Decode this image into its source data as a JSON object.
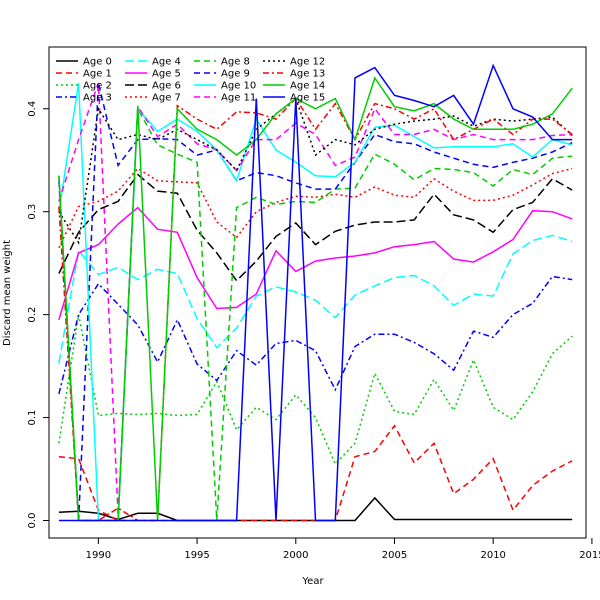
{
  "chart_data": {
    "type": "line",
    "title": "",
    "xlabel": "Year",
    "ylabel": "Discard mean weight",
    "xlim": [
      1987.5,
      2014.7
    ],
    "ylim": [
      -0.017,
      0.46
    ],
    "xticks": [
      1990,
      1995,
      2000,
      2005,
      2010,
      2015
    ],
    "yticks": [
      0.0,
      0.1,
      0.2,
      0.3,
      0.4
    ],
    "ytick_labels": [
      "0.0",
      "0.1",
      "0.2",
      "0.3",
      "0.4"
    ],
    "grid": false,
    "legend_position": "top-left",
    "x": [
      1988,
      1989,
      1990,
      1991,
      1992,
      1993,
      1994,
      1995,
      1996,
      1997,
      1998,
      1999,
      2000,
      2001,
      2002,
      2003,
      2004,
      2005,
      2006,
      2007,
      2008,
      2009,
      2010,
      2011,
      2012,
      2013,
      2014
    ],
    "series": [
      {
        "name": "Age 0",
        "color": "#000000",
        "dash": "solid",
        "values": [
          0.008,
          0.009,
          0.007,
          0.001,
          0.007,
          0.007,
          0.0,
          0.0,
          0.0,
          0.0,
          0.0,
          0.0,
          0.0,
          0.0,
          0.0,
          0.0,
          0.022,
          0.001,
          0.001,
          0.001,
          0.001,
          0.001,
          0.001,
          0.001,
          0.001,
          0.001,
          0.001
        ]
      },
      {
        "name": "Age 1",
        "color": "#ff0000",
        "dash": "dashed",
        "values": [
          0.062,
          0.06,
          0.01,
          0.0,
          0.0,
          0.0,
          0.0,
          0.0,
          0.0,
          0.0,
          0.0,
          0.0,
          0.0,
          0.0,
          0.0,
          0.062,
          0.067,
          0.092,
          0.056,
          0.075,
          0.026,
          0.04,
          0.06,
          0.01,
          0.034,
          0.048,
          0.058
        ]
      },
      {
        "name": "Age 2",
        "color": "#00cd00",
        "dash": "dotted",
        "values": [
          0.075,
          0.2,
          0.102,
          0.104,
          0.103,
          0.104,
          0.102,
          0.103,
          0.135,
          0.088,
          0.11,
          0.098,
          0.122,
          0.1,
          0.055,
          0.075,
          0.143,
          0.106,
          0.103,
          0.137,
          0.107,
          0.156,
          0.11,
          0.098,
          0.125,
          0.162,
          0.179
        ]
      },
      {
        "name": "Age 3",
        "color": "#0000ff",
        "dash": "dashdot",
        "values": [
          0.123,
          0.2,
          0.23,
          0.21,
          0.19,
          0.154,
          0.195,
          0.152,
          0.136,
          0.165,
          0.151,
          0.172,
          0.175,
          0.165,
          0.127,
          0.169,
          0.181,
          0.181,
          0.173,
          0.162,
          0.146,
          0.184,
          0.178,
          0.2,
          0.211,
          0.237,
          0.234
        ]
      },
      {
        "name": "Age 4",
        "color": "#00ffff",
        "dash": "longdash",
        "values": [
          0.153,
          0.262,
          0.239,
          0.246,
          0.234,
          0.244,
          0.24,
          0.196,
          0.168,
          0.187,
          0.218,
          0.227,
          0.222,
          0.214,
          0.197,
          0.219,
          0.228,
          0.236,
          0.238,
          0.228,
          0.209,
          0.22,
          0.218,
          0.259,
          0.272,
          0.277,
          0.271
        ]
      },
      {
        "name": "Age 5",
        "color": "#ff00ff",
        "dash": "solid",
        "values": [
          0.195,
          0.26,
          0.268,
          0.288,
          0.304,
          0.283,
          0.28,
          0.236,
          0.206,
          0.207,
          0.22,
          0.262,
          0.242,
          0.252,
          0.255,
          0.257,
          0.26,
          0.266,
          0.268,
          0.271,
          0.254,
          0.251,
          0.261,
          0.273,
          0.301,
          0.3,
          0.293
        ]
      },
      {
        "name": "Age 6",
        "color": "#000000",
        "dash": "longdash",
        "values": [
          0.24,
          0.28,
          0.302,
          0.31,
          0.336,
          0.32,
          0.318,
          0.282,
          0.26,
          0.233,
          0.252,
          0.276,
          0.289,
          0.268,
          0.281,
          0.287,
          0.29,
          0.29,
          0.292,
          0.317,
          0.297,
          0.292,
          0.28,
          0.302,
          0.309,
          0.332,
          0.321
        ]
      },
      {
        "name": "Age 7",
        "color": "#ff0000",
        "dash": "dotted",
        "values": [
          0.265,
          0.305,
          0.31,
          0.32,
          0.342,
          0.33,
          0.329,
          0.328,
          0.29,
          0.275,
          0.3,
          0.309,
          0.315,
          0.314,
          0.317,
          0.314,
          0.324,
          0.316,
          0.314,
          0.332,
          0.32,
          0.311,
          0.311,
          0.316,
          0.326,
          0.337,
          0.342
        ]
      },
      {
        "name": "Age 8",
        "color": "#00cd00",
        "dash": "dashed",
        "values": [
          0.335,
          0.0,
          0.0,
          0.0,
          0.4,
          0.365,
          0.356,
          0.348,
          0.0,
          0.304,
          0.314,
          0.307,
          0.31,
          0.309,
          0.322,
          0.323,
          0.356,
          0.346,
          0.331,
          0.342,
          0.341,
          0.338,
          0.325,
          0.341,
          0.336,
          0.352,
          0.354
        ]
      },
      {
        "name": "Age 9",
        "color": "#0000ff",
        "dash": "dashed",
        "values": [
          0.33,
          0.0,
          0.425,
          0.345,
          0.37,
          0.371,
          0.37,
          0.355,
          0.36,
          0.33,
          0.338,
          0.335,
          0.328,
          0.322,
          0.322,
          0.348,
          0.375,
          0.368,
          0.366,
          0.358,
          0.352,
          0.346,
          0.343,
          0.348,
          0.352,
          0.358,
          0.367
        ]
      },
      {
        "name": "Age 10",
        "color": "#00ffff",
        "dash": "solid",
        "values": [
          0.3,
          0.425,
          0.0,
          0.0,
          0.4,
          0.378,
          0.39,
          0.378,
          0.36,
          0.33,
          0.39,
          0.36,
          0.348,
          0.335,
          0.334,
          0.348,
          0.382,
          0.384,
          0.373,
          0.362,
          0.363,
          0.363,
          0.363,
          0.366,
          0.353,
          0.37,
          0.365
        ]
      },
      {
        "name": "Age 11",
        "color": "#ff00ff",
        "dash": "dashed",
        "values": [
          0.31,
          0.37,
          0.425,
          0.005,
          0.402,
          0.373,
          0.385,
          0.366,
          0.36,
          0.34,
          0.37,
          0.37,
          0.386,
          0.375,
          0.345,
          0.353,
          0.4,
          0.375,
          0.375,
          0.38,
          0.37,
          0.375,
          0.37,
          0.37,
          0.37,
          0.374,
          0.375
        ]
      },
      {
        "name": "Age 12",
        "color": "#000000",
        "dash": "dotted",
        "values": [
          0.3,
          0.27,
          0.4,
          0.37,
          0.375,
          0.37,
          0.38,
          0.37,
          0.36,
          0.34,
          0.38,
          0.395,
          0.41,
          0.355,
          0.37,
          0.365,
          0.38,
          0.385,
          0.388,
          0.39,
          0.393,
          0.383,
          0.39,
          0.388,
          0.39,
          0.392,
          0.374
        ]
      },
      {
        "name": "Age 13",
        "color": "#ff0000",
        "dash": "dashdot",
        "values": [
          0.305,
          0.0,
          0.0,
          0.012,
          0.0,
          0.0,
          0.403,
          0.39,
          0.38,
          0.397,
          0.396,
          0.39,
          0.41,
          0.38,
          0.405,
          0.37,
          0.405,
          0.4,
          0.39,
          0.4,
          0.37,
          0.38,
          0.39,
          0.375,
          0.39,
          0.39,
          0.375
        ]
      },
      {
        "name": "Age 14",
        "color": "#00cd00",
        "dash": "solid",
        "values": [
          0.335,
          0.0,
          0.0,
          0.0,
          0.403,
          0.0,
          0.4,
          0.38,
          0.37,
          0.355,
          0.37,
          0.395,
          0.41,
          0.4,
          0.41,
          0.37,
          0.43,
          0.402,
          0.398,
          0.405,
          0.39,
          0.38,
          0.38,
          0.38,
          0.385,
          0.395,
          0.42
        ]
      },
      {
        "name": "Age 15",
        "color": "#0000ff",
        "dash": "solid",
        "values": [
          0.0,
          0.0,
          0.0,
          0.0,
          0.0,
          0.0,
          0.0,
          0.0,
          0.0,
          0.0,
          0.41,
          0.0,
          0.41,
          0.0,
          0.0,
          0.43,
          0.44,
          0.413,
          0.408,
          0.402,
          0.413,
          0.385,
          0.442,
          0.4,
          0.392,
          0.37,
          0.37
        ]
      }
    ]
  }
}
